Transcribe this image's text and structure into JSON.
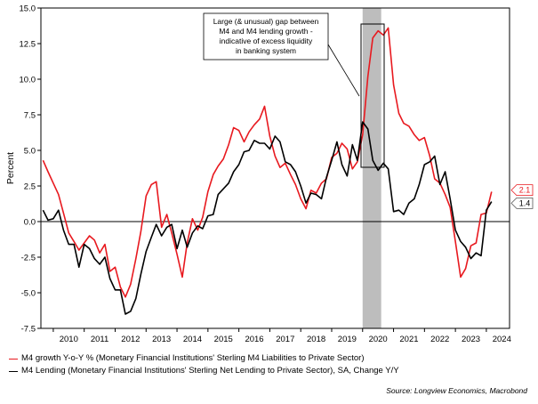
{
  "chart_data": {
    "type": "line",
    "ylabel": "Percent",
    "ylim": [
      -7.5,
      15.0
    ],
    "yticks": [
      "15.0",
      "12.5",
      "10.0",
      "7.5",
      "5.0",
      "2.5",
      "0.0",
      "-2.5",
      "-5.0",
      "-7.5"
    ],
    "xlim": [
      2009.6,
      2024.75
    ],
    "xticks": [
      "2010",
      "2011",
      "2012",
      "2013",
      "2014",
      "2015",
      "2016",
      "2017",
      "2018",
      "2019",
      "2020",
      "2021",
      "2022",
      "2023",
      "2024"
    ],
    "grid": false,
    "shaded_region": [
      2020.0,
      2020.6
    ],
    "annotation": {
      "lines": [
        "Large (& unusual) gap between",
        "M4 and M4 lending growth -",
        "indicative of excess liquidity",
        "in banking system"
      ]
    },
    "series": [
      {
        "name": "M4 growth Y-o-Y % (Monetary Financial Institutions' Sterling M4 Liabilities to Private Sector)",
        "color": "#e8191f",
        "end_label": "2.1",
        "x": [
          2009.67,
          2009.83,
          2010.0,
          2010.17,
          2010.33,
          2010.5,
          2010.67,
          2010.83,
          2011.0,
          2011.17,
          2011.33,
          2011.5,
          2011.67,
          2011.83,
          2012.0,
          2012.17,
          2012.33,
          2012.5,
          2012.67,
          2012.83,
          2013.0,
          2013.17,
          2013.33,
          2013.5,
          2013.67,
          2013.83,
          2014.0,
          2014.17,
          2014.33,
          2014.5,
          2014.67,
          2014.83,
          2015.0,
          2015.17,
          2015.33,
          2015.5,
          2015.67,
          2015.83,
          2016.0,
          2016.17,
          2016.33,
          2016.5,
          2016.67,
          2016.83,
          2017.0,
          2017.17,
          2017.33,
          2017.5,
          2017.67,
          2017.83,
          2018.0,
          2018.17,
          2018.33,
          2018.5,
          2018.67,
          2018.83,
          2019.0,
          2019.17,
          2019.33,
          2019.5,
          2019.67,
          2019.83,
          2020.0,
          2020.17,
          2020.33,
          2020.5,
          2020.67,
          2020.83,
          2021.0,
          2021.17,
          2021.33,
          2021.5,
          2021.67,
          2021.83,
          2022.0,
          2022.17,
          2022.33,
          2022.5,
          2022.67,
          2022.83,
          2023.0,
          2023.17,
          2023.33,
          2023.5,
          2023.67,
          2023.83,
          2024.0,
          2024.17
        ],
        "y": [
          4.3,
          3.5,
          2.7,
          1.9,
          0.6,
          -0.8,
          -1.4,
          -2.0,
          -1.5,
          -1.0,
          -1.3,
          -2.2,
          -1.6,
          -3.5,
          -3.2,
          -4.6,
          -5.3,
          -4.4,
          -2.6,
          -0.7,
          1.8,
          2.6,
          2.8,
          -0.4,
          0.5,
          -0.8,
          -2.3,
          -3.9,
          -1.5,
          0.2,
          -0.6,
          0.3,
          2.1,
          3.3,
          3.9,
          4.4,
          5.4,
          6.6,
          6.4,
          5.6,
          6.3,
          6.8,
          7.2,
          8.1,
          6.0,
          4.6,
          3.8,
          4.1,
          3.3,
          2.6,
          1.6,
          0.9,
          2.2,
          2.0,
          2.7,
          3.0,
          4.5,
          4.8,
          5.5,
          5.1,
          3.7,
          4.2,
          6.1,
          10.2,
          12.9,
          13.4,
          13.1,
          13.6,
          9.6,
          7.6,
          6.9,
          6.7,
          6.1,
          5.7,
          5.9,
          4.6,
          3.0,
          2.7,
          1.9,
          1.0,
          -1.4,
          -3.9,
          -3.3,
          -1.7,
          -1.5,
          0.5,
          0.6,
          2.1
        ]
      },
      {
        "name": "M4 Lending (Monetary Financial Institutions' Sterling Net Lending to Private Sector), SA, Change Y/Y",
        "color": "#000000",
        "end_label": "1.4",
        "x": [
          2009.67,
          2009.83,
          2010.0,
          2010.17,
          2010.33,
          2010.5,
          2010.67,
          2010.83,
          2011.0,
          2011.17,
          2011.33,
          2011.5,
          2011.67,
          2011.83,
          2012.0,
          2012.17,
          2012.33,
          2012.5,
          2012.67,
          2012.83,
          2013.0,
          2013.17,
          2013.33,
          2013.5,
          2013.67,
          2013.83,
          2014.0,
          2014.17,
          2014.33,
          2014.5,
          2014.67,
          2014.83,
          2015.0,
          2015.17,
          2015.33,
          2015.5,
          2015.67,
          2015.83,
          2016.0,
          2016.17,
          2016.33,
          2016.5,
          2016.67,
          2016.83,
          2017.0,
          2017.17,
          2017.33,
          2017.5,
          2017.67,
          2017.83,
          2018.0,
          2018.17,
          2018.33,
          2018.5,
          2018.67,
          2018.83,
          2019.0,
          2019.17,
          2019.33,
          2019.5,
          2019.67,
          2019.83,
          2020.0,
          2020.17,
          2020.33,
          2020.5,
          2020.67,
          2020.83,
          2021.0,
          2021.17,
          2021.33,
          2021.5,
          2021.67,
          2021.83,
          2022.0,
          2022.17,
          2022.33,
          2022.5,
          2022.67,
          2022.83,
          2023.0,
          2023.17,
          2023.33,
          2023.5,
          2023.67,
          2023.83,
          2024.0,
          2024.17
        ],
        "y": [
          0.8,
          0.1,
          0.2,
          0.8,
          -0.6,
          -1.6,
          -1.6,
          -3.2,
          -1.6,
          -1.9,
          -2.6,
          -3.0,
          -2.5,
          -4.0,
          -4.8,
          -4.8,
          -6.5,
          -6.3,
          -5.4,
          -3.7,
          -2.1,
          -1.1,
          -0.2,
          -1.0,
          -0.4,
          -0.2,
          -1.9,
          -0.6,
          -1.8,
          -0.8,
          -0.3,
          -0.5,
          0.4,
          0.5,
          1.9,
          2.3,
          2.7,
          3.5,
          4.0,
          4.9,
          5.0,
          5.7,
          5.5,
          5.5,
          5.1,
          6.0,
          5.6,
          4.2,
          4.0,
          3.5,
          2.5,
          1.3,
          2.0,
          1.9,
          1.6,
          3.1,
          4.3,
          5.6,
          4.0,
          3.2,
          5.4,
          4.3,
          7.0,
          6.5,
          4.3,
          3.6,
          4.1,
          3.7,
          0.7,
          0.8,
          0.5,
          1.3,
          1.6,
          2.6,
          4.0,
          4.2,
          4.6,
          2.6,
          3.5,
          1.6,
          -0.6,
          -1.4,
          -1.8,
          -2.6,
          -2.2,
          -2.4,
          0.8,
          1.4
        ]
      }
    ]
  },
  "legend": {
    "items": [
      "M4 growth Y-o-Y % (Monetary Financial Institutions' Sterling M4 Liabilities to Private Sector)",
      "M4 Lending (Monetary Financial Institutions' Sterling Net Lending to Private Sector), SA, Change Y/Y"
    ]
  },
  "source": "Source: Longview Economics, Macrobond"
}
